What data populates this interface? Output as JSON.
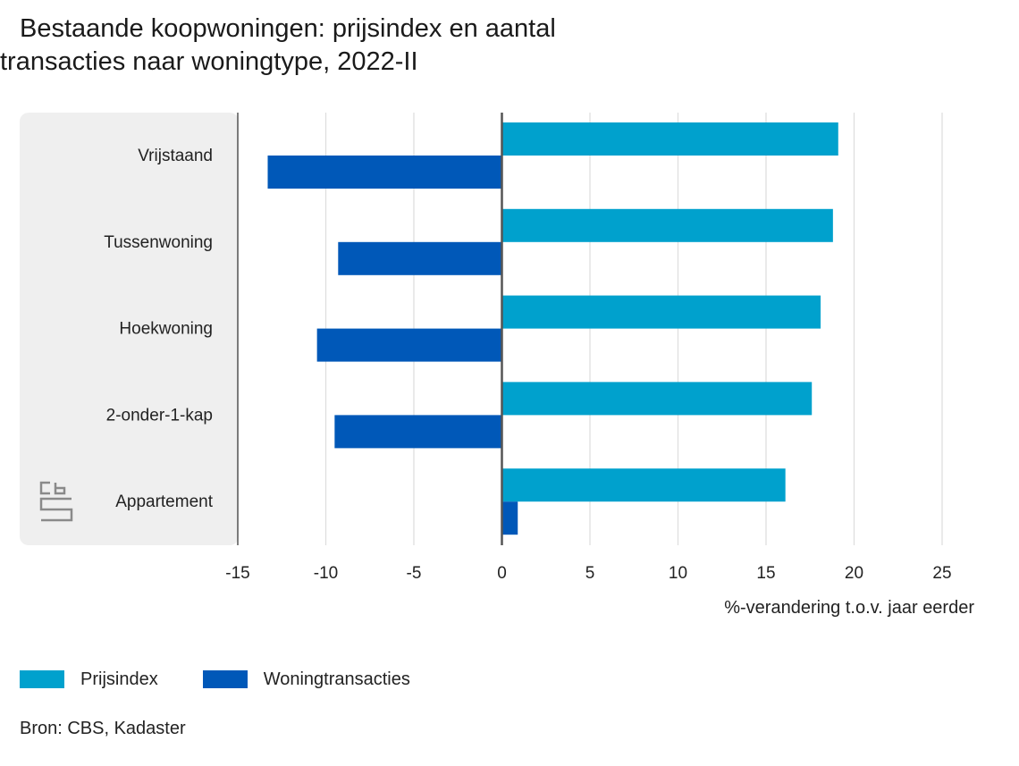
{
  "title_line1": "Bestaande koopwoningen: prijsindex en aantal",
  "title_line2": "transacties naar woningtype, 2022-II",
  "source": "Bron: CBS, Kadaster",
  "logo": "cbs",
  "colors": {
    "prijsindex": "#00a1cd",
    "transacties": "#0058b8",
    "panel": "#efefef",
    "grid": "#dddddd",
    "axis": "#555555"
  },
  "chart_data": {
    "type": "bar",
    "orientation": "horizontal",
    "categories": [
      "Vrijstaand",
      "Tussenwoning",
      "Hoekwoning",
      "2-onder-1-kap",
      "Appartement"
    ],
    "series": [
      {
        "name": "Prijsindex",
        "values": [
          19.1,
          18.8,
          18.1,
          17.6,
          16.1
        ]
      },
      {
        "name": "Woningtransacties",
        "values": [
          -13.3,
          -9.3,
          -10.5,
          -9.5,
          0.9
        ]
      }
    ],
    "xlim": [
      -15,
      25
    ],
    "xticks": [
      -15,
      -10,
      -5,
      0,
      5,
      10,
      15,
      20,
      25
    ],
    "xlabel": "%-verandering t.o.v. jaar eerder",
    "grid": true,
    "legend": "bottom-left"
  }
}
